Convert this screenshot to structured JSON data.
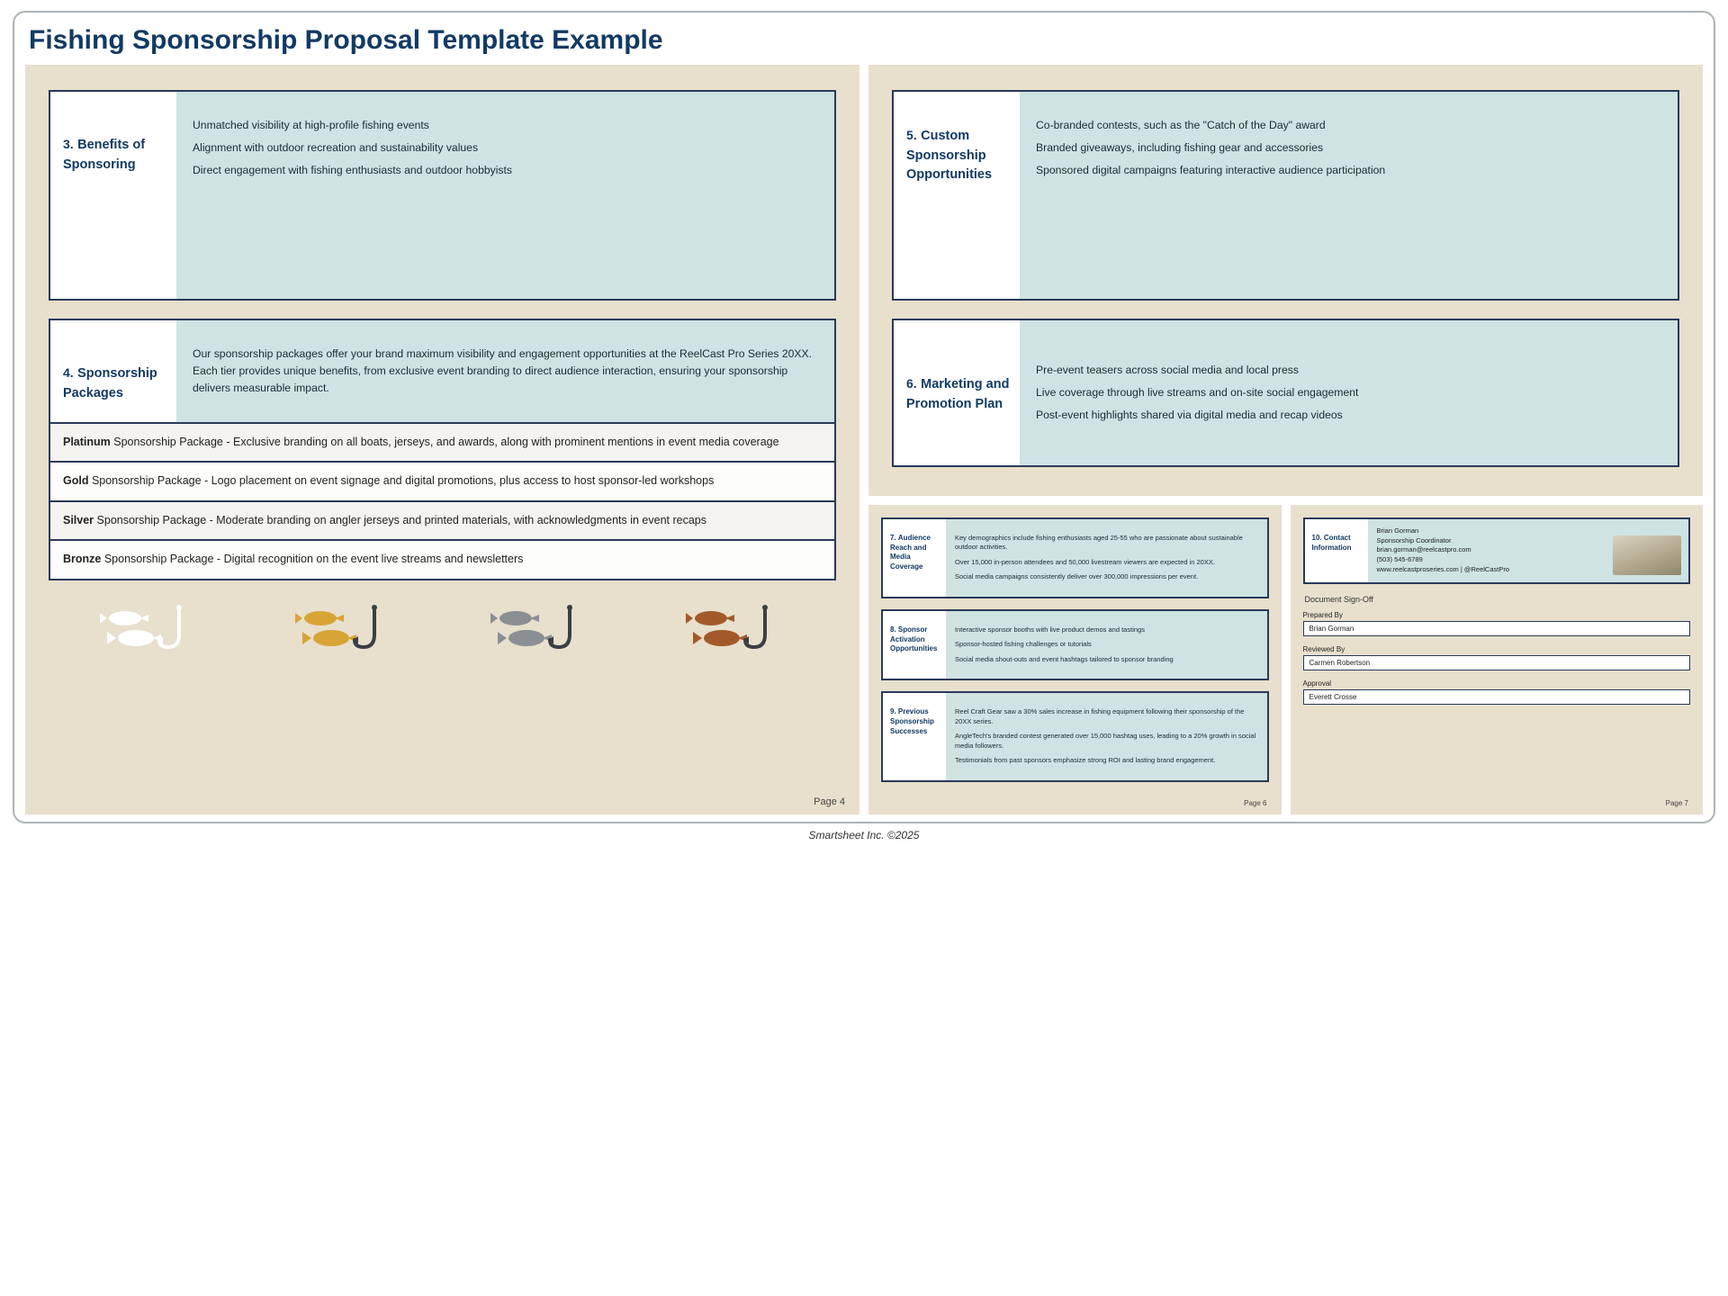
{
  "title": "Fishing Sponsorship Proposal Template Example",
  "footer": "Smartsheet Inc. ©2025",
  "colors": {
    "page_bg": "#e8dfcd",
    "section_border": "#2a3a5a",
    "section_right_bg": "#cfe3e3",
    "title_color": "#123a63",
    "icon_white": "#ffffff",
    "icon_gold": "#d9a436",
    "icon_grey": "#8a8f93",
    "icon_bronze": "#a35a2a",
    "hook_dark": "#3a3f44"
  },
  "page4": {
    "page_label": "Page 4",
    "sections": {
      "benefits": {
        "num": "3.",
        "title": "Benefits of Sponsoring",
        "lines": [
          "Unmatched visibility at high-profile fishing events",
          "Alignment with outdoor recreation and sustainability values",
          "Direct engagement with fishing enthusiasts and outdoor hobbyists"
        ]
      },
      "packages": {
        "num": "4.",
        "title": "Sponsorship Packages",
        "intro": "Our sponsorship packages offer your brand maximum visibility and engagement opportunities at the ReelCast Pro Series 20XX. Each tier provides unique benefits, from exclusive event branding to direct audience interaction, ensuring your sponsorship delivers measurable impact."
      }
    },
    "package_rows": [
      {
        "tier": "Platinum",
        "text": " Sponsorship Package - Exclusive branding on all boats, jerseys, and awards, along with prominent mentions in event media coverage"
      },
      {
        "tier": "Gold",
        "text": " Sponsorship Package - Logo placement on event signage and digital promotions, plus access to host sponsor-led workshops"
      },
      {
        "tier": "Silver",
        "text": " Sponsorship Package - Moderate branding on angler jerseys and printed materials, with acknowledgments in event recaps"
      },
      {
        "tier": "Bronze",
        "text": " Sponsorship Package - Digital recognition on the event live streams and newsletters"
      }
    ]
  },
  "page5": {
    "custom": {
      "num": "5.",
      "title": "Custom Sponsorship Opportunities",
      "lines": [
        "Co-branded contests, such as the \"Catch of the Day\" award",
        "Branded giveaways, including fishing gear and accessories",
        "Sponsored digital campaigns featuring interactive audience participation"
      ]
    },
    "marketing": {
      "num": "6.",
      "title": "Marketing and Promotion Plan",
      "lines": [
        "Pre-event teasers across social media and local press",
        "Live coverage through live streams and on-site social engagement",
        "Post-event highlights shared via digital media and recap videos"
      ]
    }
  },
  "page6": {
    "page_label": "Page 6",
    "audience": {
      "num": "7.",
      "title": "Audience Reach and Media Coverage",
      "lines": [
        "Key demographics include fishing enthusiasts aged 25-55 who are passionate about sustainable outdoor activities.",
        "Over 15,000 in-person attendees and 50,000 livestream viewers are expected in 20XX.",
        "Social media campaigns consistently deliver over 300,000 impressions per event."
      ]
    },
    "activation": {
      "num": "8.",
      "title": "Sponsor Activation Opportunities",
      "lines": [
        "Interactive sponsor booths with live product demos and tastings",
        "Sponsor-hosted fishing challenges or tutorials",
        "Social media shout-outs and event hashtags tailored to sponsor branding"
      ]
    },
    "successes": {
      "num": "9.",
      "title": "Previous Sponsorship Successes",
      "lines": [
        "Reel Craft Gear saw a 30% sales increase in fishing equipment following their sponsorship of the 20XX series.",
        "AngleTech's branded contest generated over 15,000 hashtag uses, leading to a 20% growth in social media followers.",
        "Testimonials from past sponsors emphasize strong ROI and lasting brand engagement."
      ]
    }
  },
  "page7": {
    "page_label": "Page 7",
    "contact": {
      "num": "10.",
      "title": "Contact Information",
      "name": "Brian Gorman",
      "role": "Sponsorship Coordinator",
      "email": "brian.gorman@reelcastpro.com",
      "phone": "(503) 545-6789",
      "web": "www.reelcastproseries.com | @ReelCastPro"
    },
    "signoff": {
      "heading": "Document Sign-Off",
      "fields": [
        {
          "label": "Prepared By",
          "value": "Brian Gorman"
        },
        {
          "label": "Reviewed By",
          "value": "Carmen Robertson"
        },
        {
          "label": "Approval",
          "value": "Everett Crosse"
        }
      ]
    }
  }
}
